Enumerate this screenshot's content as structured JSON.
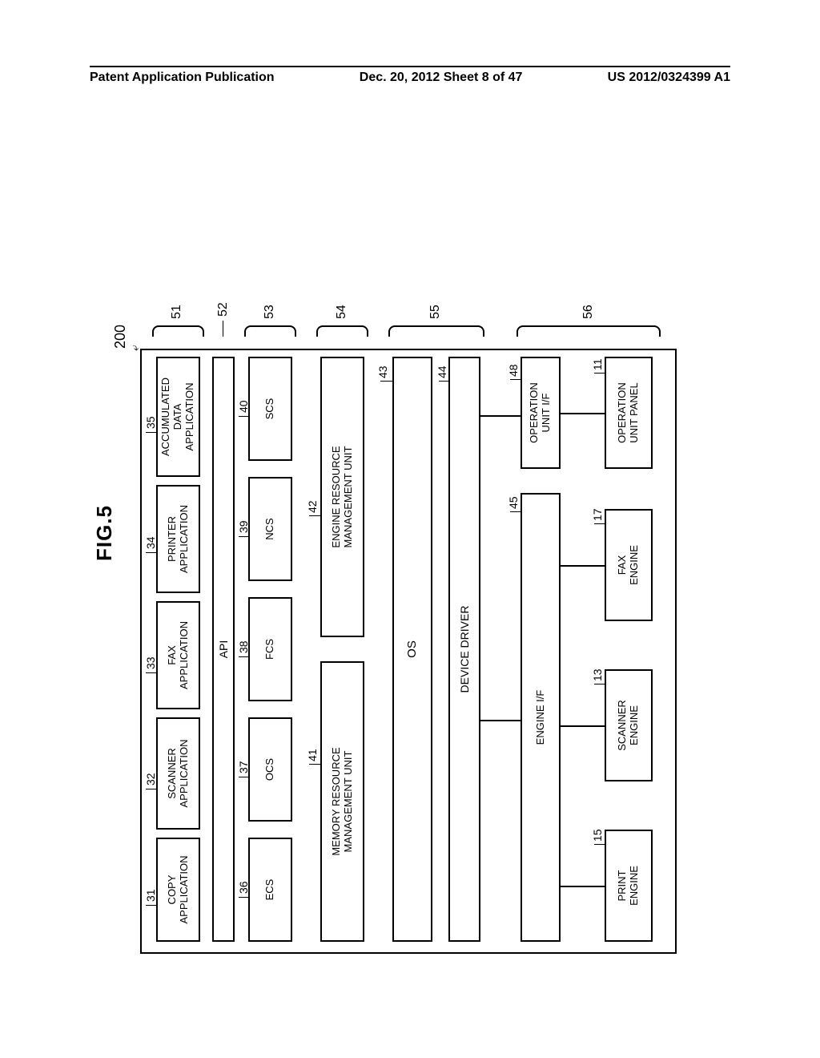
{
  "header": {
    "left": "Patent Application Publication",
    "center": "Dec. 20, 2012  Sheet 8 of 47",
    "right": "US 2012/0324399 A1"
  },
  "figure": {
    "title": "FIG.5",
    "main_ref": "200",
    "boxes": {
      "copy_app": {
        "label": "COPY\nAPPLICATION",
        "num": "31"
      },
      "scanner_app": {
        "label": "SCANNER\nAPPLICATION",
        "num": "32"
      },
      "fax_app": {
        "label": "FAX\nAPPLICATION",
        "num": "33"
      },
      "printer_app": {
        "label": "PRINTER\nAPPLICATION",
        "num": "34"
      },
      "accum_app": {
        "label": "ACCUMULATED\nDATA\nAPPLICATION",
        "num": "35"
      },
      "api": {
        "label": "API"
      },
      "ecs": {
        "label": "ECS",
        "num": "36"
      },
      "ocs": {
        "label": "OCS",
        "num": "37"
      },
      "fcs": {
        "label": "FCS",
        "num": "38"
      },
      "ncs": {
        "label": "NCS",
        "num": "39"
      },
      "scs": {
        "label": "SCS",
        "num": "40"
      },
      "mrm": {
        "label": "MEMORY RESOURCE\nMANAGEMENT UNIT",
        "num": "41"
      },
      "erm": {
        "label": "ENGINE RESOURCE\nMANAGEMENT UNIT",
        "num": "42"
      },
      "os": {
        "label": "OS",
        "num": "43"
      },
      "dd": {
        "label": "DEVICE DRIVER",
        "num": "44"
      },
      "eif": {
        "label": "ENGINE I/F",
        "num": "45"
      },
      "oif": {
        "label": "OPERATION\nUNIT I/F",
        "num": "48"
      },
      "print_eng": {
        "label": "PRINT\nENGINE",
        "num": "15"
      },
      "scan_eng": {
        "label": "SCANNER\nENGINE",
        "num": "13"
      },
      "fax_eng": {
        "label": "FAX\nENGINE",
        "num": "17"
      },
      "op_panel": {
        "label": "OPERATION\nUNIT PANEL",
        "num": "11"
      }
    },
    "brackets": {
      "apps": "51",
      "api": "52",
      "svc": "53",
      "mgmt": "54",
      "os": "55",
      "hw": "56"
    }
  },
  "style": {
    "colors": {
      "line": "#000000",
      "bg": "#ffffff"
    },
    "font_family": "Arial, sans-serif"
  }
}
